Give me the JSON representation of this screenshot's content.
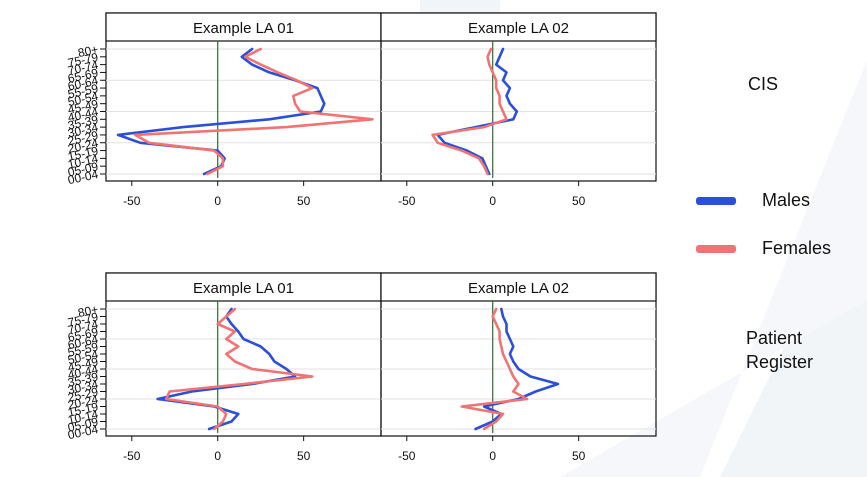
{
  "chart_data": {
    "type": "line",
    "age_groups": [
      "00-04",
      "05-09",
      "10-14",
      "15-19",
      "20-24",
      "25-29",
      "30-34",
      "35-39",
      "40-44",
      "45-49",
      "50-54",
      "55-59",
      "60-64",
      "65-69",
      "70-74",
      "75-79",
      "80+"
    ],
    "colors": {
      "Males": "#2b4fd6",
      "Females": "#f07474"
    },
    "side_labels": {
      "top": "CIS",
      "bottom_line1": "Patient",
      "bottom_line2": "Register"
    },
    "legend": [
      {
        "name": "Males",
        "color": "#2b4fd6"
      },
      {
        "name": "Females",
        "color": "#f07474"
      }
    ],
    "panels": [
      {
        "id": "cis-la01",
        "title": "Example LA 01",
        "xlim": [
          -65,
          95
        ],
        "xticks": [
          -50,
          0,
          50
        ],
        "series": [
          {
            "name": "Males",
            "values": [
              -8,
              2,
              4,
              0,
              -45,
              -58,
              -20,
              30,
              60,
              62,
              60,
              58,
              45,
              30,
              20,
              14,
              20
            ]
          },
          {
            "name": "Females",
            "values": [
              -6,
              3,
              3,
              -2,
              -40,
              -48,
              40,
              90,
              48,
              45,
              44,
              55,
              46,
              35,
              25,
              16,
              25
            ]
          }
        ]
      },
      {
        "id": "cis-la02",
        "title": "Example LA 02",
        "xlim": [
          -65,
          95
        ],
        "xticks": [
          -50,
          0,
          50
        ],
        "series": [
          {
            "name": "Males",
            "values": [
              -2,
              -4,
              -6,
              -15,
              -28,
              -32,
              -10,
              12,
              14,
              10,
              8,
              10,
              6,
              8,
              2,
              4,
              6
            ]
          },
          {
            "name": "Females",
            "values": [
              -3,
              -5,
              -8,
              -18,
              -32,
              -35,
              -5,
              8,
              6,
              4,
              4,
              2,
              2,
              0,
              -2,
              -3,
              -1
            ]
          }
        ]
      },
      {
        "id": "pr-la01",
        "title": "Example LA 01",
        "xlim": [
          -65,
          95
        ],
        "xticks": [
          -50,
          0,
          50
        ],
        "series": [
          {
            "name": "Males",
            "values": [
              -5,
              8,
              12,
              -2,
              -35,
              -15,
              20,
              45,
              40,
              33,
              30,
              25,
              15,
              12,
              8,
              5,
              8
            ]
          },
          {
            "name": "Females",
            "values": [
              -2,
              3,
              5,
              0,
              -30,
              -28,
              15,
              55,
              20,
              10,
              5,
              12,
              5,
              10,
              0,
              5,
              10
            ]
          }
        ]
      },
      {
        "id": "pr-la02",
        "title": "Example LA 02",
        "xlim": [
          -65,
          95
        ],
        "xticks": [
          -50,
          0,
          50
        ],
        "series": [
          {
            "name": "Males",
            "values": [
              -10,
              0,
              5,
              -5,
              15,
              25,
              38,
              22,
              15,
              12,
              10,
              12,
              10,
              8,
              8,
              6,
              5
            ]
          },
          {
            "name": "Females",
            "values": [
              -5,
              2,
              6,
              -18,
              20,
              12,
              15,
              12,
              10,
              8,
              6,
              5,
              4,
              4,
              2,
              0,
              2
            ]
          }
        ]
      }
    ]
  }
}
